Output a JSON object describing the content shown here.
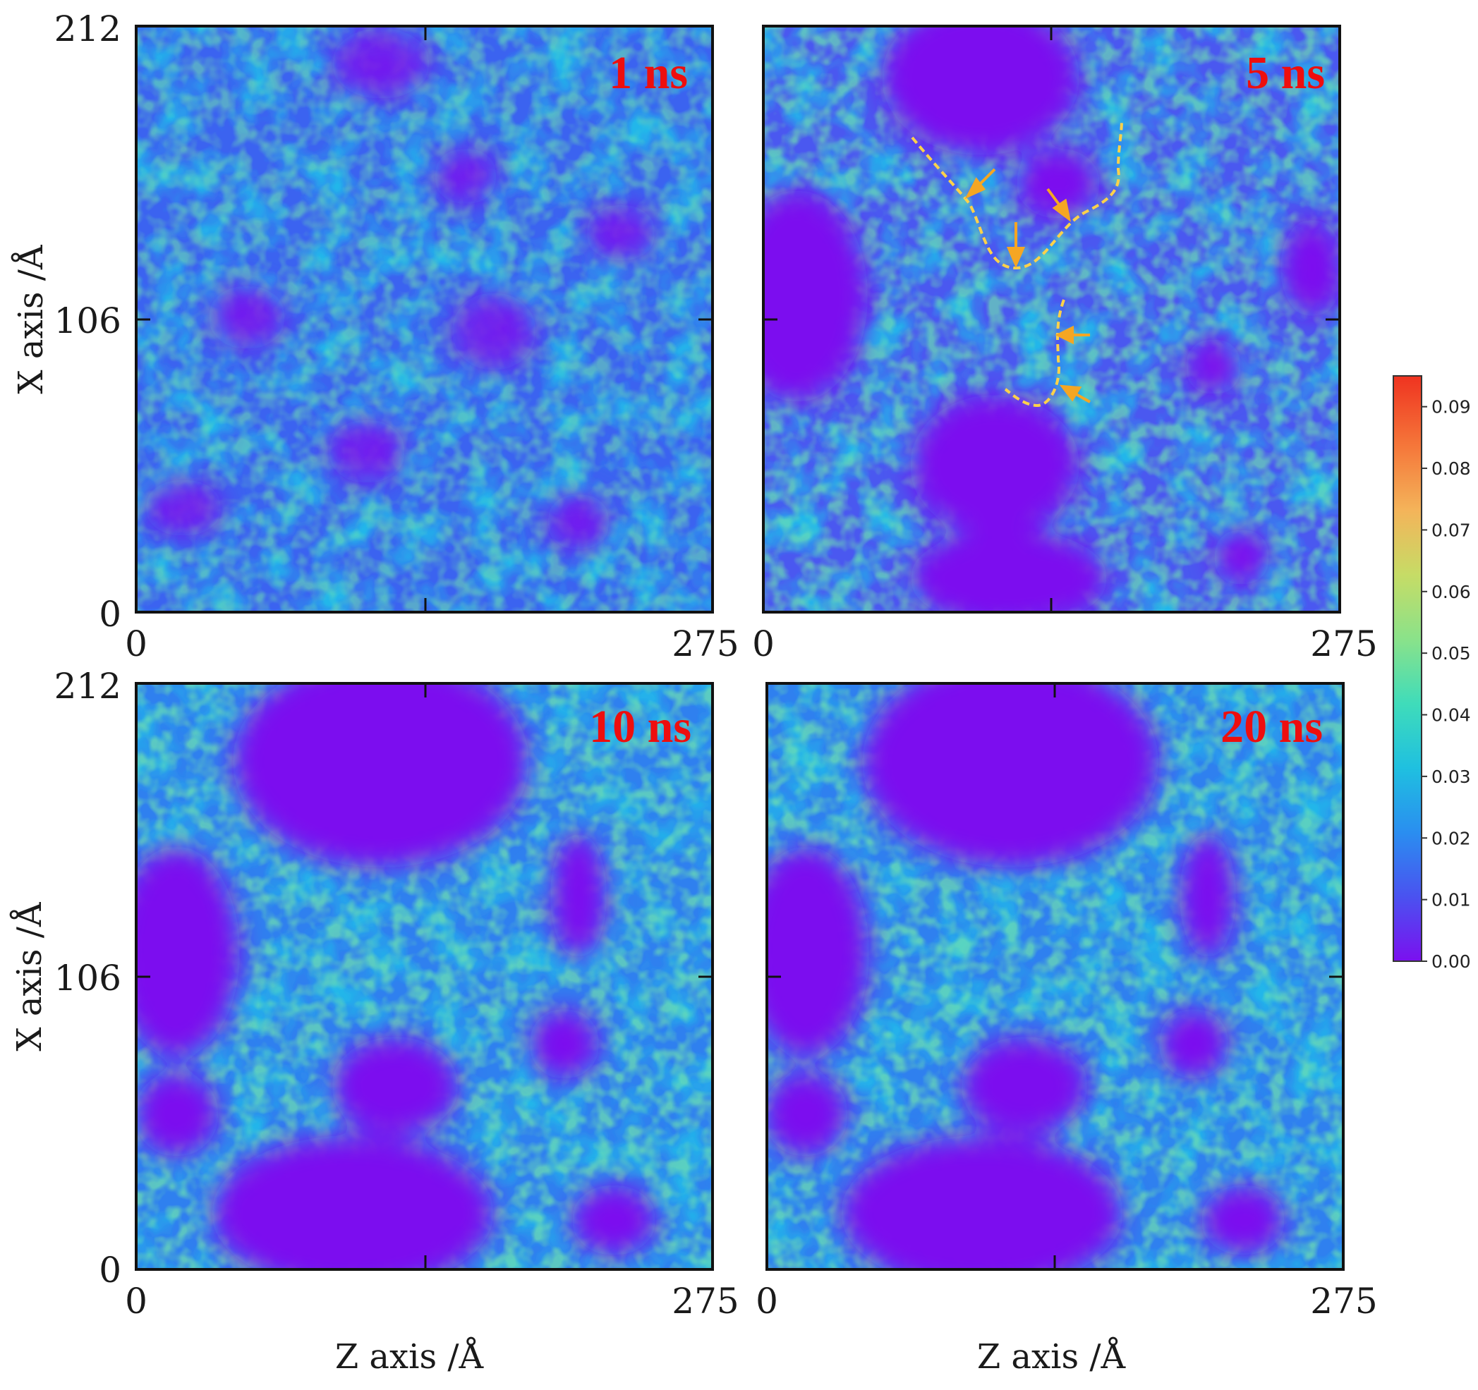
{
  "chart_data": [
    {
      "type": "heatmap",
      "panel_label": "1 ns",
      "xlabel": "",
      "ylabel": "X axis /Å",
      "xlim": [
        0,
        275
      ],
      "ylim": [
        0,
        212
      ],
      "x_ticks": [
        "0",
        "275"
      ],
      "y_ticks": [
        "0",
        "106",
        "212"
      ],
      "pattern": "fine, finely dispersed network of low and moderate density (0.01–0.04) with many small low-density pockets"
    },
    {
      "type": "heatmap",
      "panel_label": "5 ns",
      "xlabel": "",
      "ylabel": "",
      "xlim": [
        0,
        275
      ],
      "ylim": [
        0,
        212
      ],
      "x_ticks": [
        "0",
        "275"
      ],
      "y_ticks": [],
      "pattern": "coarsening network; large empty domains forming; yellow dashed interface contours with orange arrows"
    },
    {
      "type": "heatmap",
      "panel_label": "10 ns",
      "xlabel": "Z axis /Å",
      "ylabel": "X axis /Å",
      "xlim": [
        0,
        275
      ],
      "ylim": [
        0,
        212
      ],
      "x_ticks": [
        "0",
        "275"
      ],
      "y_ticks": [
        "0",
        "106",
        "212"
      ],
      "pattern": "well-separated large low-density domains connected by a continuous density network"
    },
    {
      "type": "heatmap",
      "panel_label": "20 ns",
      "xlabel": "Z axis /Å",
      "ylabel": "",
      "xlim": [
        0,
        275
      ],
      "ylim": [
        0,
        212
      ],
      "x_ticks": [
        "0",
        "275"
      ],
      "y_ticks": [],
      "pattern": "essentially the same as 10 ns (converged morphology)"
    }
  ],
  "colorbar": {
    "range": [
      0,
      0.095
    ],
    "ticks": [
      "0.00",
      "0.01",
      "0.02",
      "0.03",
      "0.04",
      "0.05",
      "0.06",
      "0.07",
      "0.08",
      "0.09"
    ],
    "colors": [
      "#7b10ef",
      "#4a52f0",
      "#2a8ef0",
      "#1fc0e0",
      "#3fdcba",
      "#8ae28a",
      "#c6dc66",
      "#f4b45a",
      "#f5773a",
      "#ef3320"
    ]
  },
  "annotations": {
    "contour_color": "#ffd24a",
    "arrow_color": "#f5a623"
  }
}
